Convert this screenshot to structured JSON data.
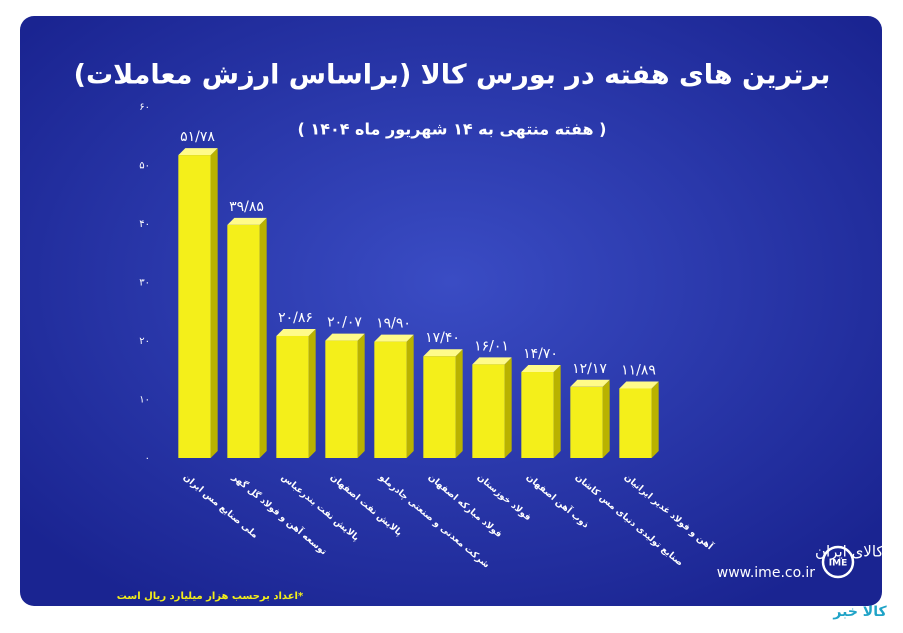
{
  "chart_data": {
    "type": "bar",
    "title": "برترین های هفته در بورس کالا (براساس ارزش معاملات)",
    "subtitle": "( هفته منتهی به ۱۴ شهریور ماه ۱۴۰۴ )",
    "categories": [
      "ملی صنایع مس ایران",
      "توسعه آهن و فولاد گل گهر",
      "پالایش نفت بندرعباس",
      "پالایش نفت اصفهان",
      "شرکت معدنی و صنعتی چادرملو",
      "فولاد مبارکه اصفهان",
      "فولاد خوزستان",
      "ذوب آهن اصفهان",
      "صنایع تولیدی دنیای مس کاشان",
      "آهن و فولاد غدیر ایرانیان"
    ],
    "values": [
      51.78,
      39.85,
      20.86,
      20.07,
      19.9,
      17.4,
      16.01,
      14.7,
      12.17,
      11.89
    ],
    "value_labels": [
      "۵۱/۷۸",
      "۳۹/۸۵",
      "۲۰/۸۶",
      "۲۰/۰۷",
      "۱۹/۹۰",
      "۱۷/۴۰",
      "۱۶/۰۱",
      "۱۴/۷۰",
      "۱۲/۱۷",
      "۱۱/۸۹"
    ],
    "color": "#f4ef1a",
    "ylim": [
      0,
      60
    ],
    "yticks": [
      {
        "value": 0,
        "label": "۰"
      },
      {
        "value": 10,
        "label": "۱۰"
      },
      {
        "value": 20,
        "label": "۲۰"
      },
      {
        "value": 30,
        "label": "۳۰"
      },
      {
        "value": 40,
        "label": "۴۰"
      },
      {
        "value": 50,
        "label": "۵۰"
      },
      {
        "value": 60,
        "label": "۶۰"
      }
    ],
    "grid": false,
    "footnote": "*اعداد برحسب هزار میلیارد ریال است",
    "logo_name": "بورس کالای ایران",
    "logo_url": "www.ime.co.ir",
    "watermark": "کالا خبر"
  }
}
